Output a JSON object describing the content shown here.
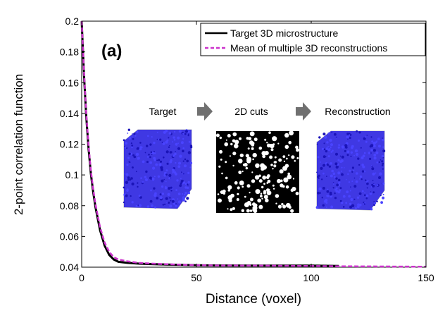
{
  "chart_data": {
    "type": "line",
    "panel_label": "(a)",
    "xlabel": "Distance (voxel)",
    "ylabel": "2-point correlation function",
    "xlim": [
      0,
      150
    ],
    "ylim": [
      0.04,
      0.2
    ],
    "xticks": [
      0,
      50,
      100,
      150
    ],
    "xtick_labels": [
      "0",
      "50",
      "100",
      "150"
    ],
    "yticks": [
      0.04,
      0.06,
      0.08,
      0.1,
      0.12,
      0.14,
      0.16,
      0.18,
      0.2
    ],
    "ytick_labels": [
      "0.04",
      "0.06",
      "0.08",
      "0.1",
      "0.12",
      "0.14",
      "0.16",
      "0.18",
      "0.2"
    ],
    "grid": false,
    "legend_position": "top-right",
    "x": [
      0,
      1,
      2,
      3,
      4,
      5,
      6,
      8,
      10,
      12,
      14,
      16,
      20,
      25,
      30,
      40,
      50,
      60,
      80,
      100,
      112,
      125,
      150
    ],
    "series": [
      {
        "name": "Target 3D microstructure",
        "color": "#000000",
        "style": "solid",
        "values": [
          0.2,
          0.165,
          0.138,
          0.117,
          0.101,
          0.089,
          0.079,
          0.064,
          0.054,
          0.048,
          0.045,
          0.0435,
          0.0428,
          0.0423,
          0.042,
          0.0416,
          0.0413,
          0.0411,
          0.041,
          0.041,
          0.0408,
          null,
          null
        ]
      },
      {
        "name": "Mean of multiple 3D reconstructions",
        "color": "#cc33cc",
        "style": "dashed",
        "values": [
          0.2,
          0.167,
          0.14,
          0.119,
          0.103,
          0.091,
          0.081,
          0.066,
          0.056,
          0.05,
          0.0465,
          0.045,
          0.0438,
          0.0428,
          0.0424,
          0.0418,
          0.0413,
          0.0411,
          0.041,
          0.0408,
          0.0406,
          0.0405,
          0.0403
        ]
      }
    ]
  },
  "inset": {
    "target_label": "Target",
    "cuts_label": "2D cuts",
    "reconstruction_label": "Reconstruction",
    "cube_color": "#2a22e0",
    "arrow_color": "#707070"
  }
}
